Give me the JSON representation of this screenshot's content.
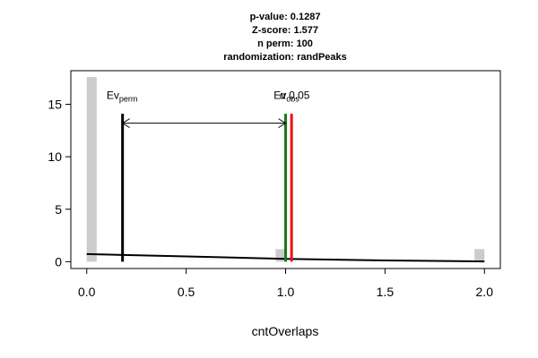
{
  "chart_data": {
    "type": "bar",
    "title_lines": [
      "p-value:  0.1287",
      "Z-score:  1.577",
      "n perm:  100",
      "randomization:  randPeaks"
    ],
    "xlabel": "cntOverlaps",
    "ylabel": "",
    "xlim": [
      -0.08,
      2.08
    ],
    "ylim": [
      -0.65,
      18.2
    ],
    "x_ticks": [
      0,
      0.5,
      1,
      1.5,
      2
    ],
    "x_tick_labels": [
      "0.0",
      "0.5",
      "1.0",
      "1.5",
      "2.0"
    ],
    "y_ticks": [
      0,
      5,
      10,
      15
    ],
    "y_tick_labels": [
      "0",
      "5",
      "10",
      "15"
    ],
    "histogram": {
      "bar_width": 0.05,
      "bars": [
        {
          "x": 0.025,
          "count": 17.6
        },
        {
          "x": 0.975,
          "count": 1.2
        },
        {
          "x": 1.975,
          "count": 1.2
        }
      ],
      "color": "#cccccc"
    },
    "density_curve": [
      {
        "x": 0,
        "y": 0.72
      },
      {
        "x": 0.5,
        "y": 0.5
      },
      {
        "x": 1.0,
        "y": 0.27
      },
      {
        "x": 1.5,
        "y": 0.12
      },
      {
        "x": 2.0,
        "y": 0.02
      }
    ],
    "vlines": [
      {
        "name": "ev-perm-line",
        "x": 0.18,
        "y_top": 14.1,
        "color": "#000000"
      },
      {
        "name": "alpha-line",
        "x": 1.0,
        "y_top": 14.1,
        "color": "#1a7a1a"
      },
      {
        "name": "ev-obs-line",
        "x": 1.03,
        "y_top": 14.1,
        "color": "#ee1111"
      }
    ],
    "arrow": {
      "x1": 0.18,
      "x2": 1.0,
      "y": 13.2
    },
    "annotations": [
      {
        "name": "ev-perm-label",
        "main": "Ev",
        "sub": "perm",
        "x": 0.1,
        "y": 15.5
      },
      {
        "name": "ev-obs-label",
        "main": "Ev",
        "sub": "obs",
        "x": 0.94,
        "y": 15.5
      },
      {
        "name": "alpha-label",
        "main": "α 0.05",
        "sub": "",
        "x": 0.97,
        "y": 15.5
      }
    ]
  }
}
